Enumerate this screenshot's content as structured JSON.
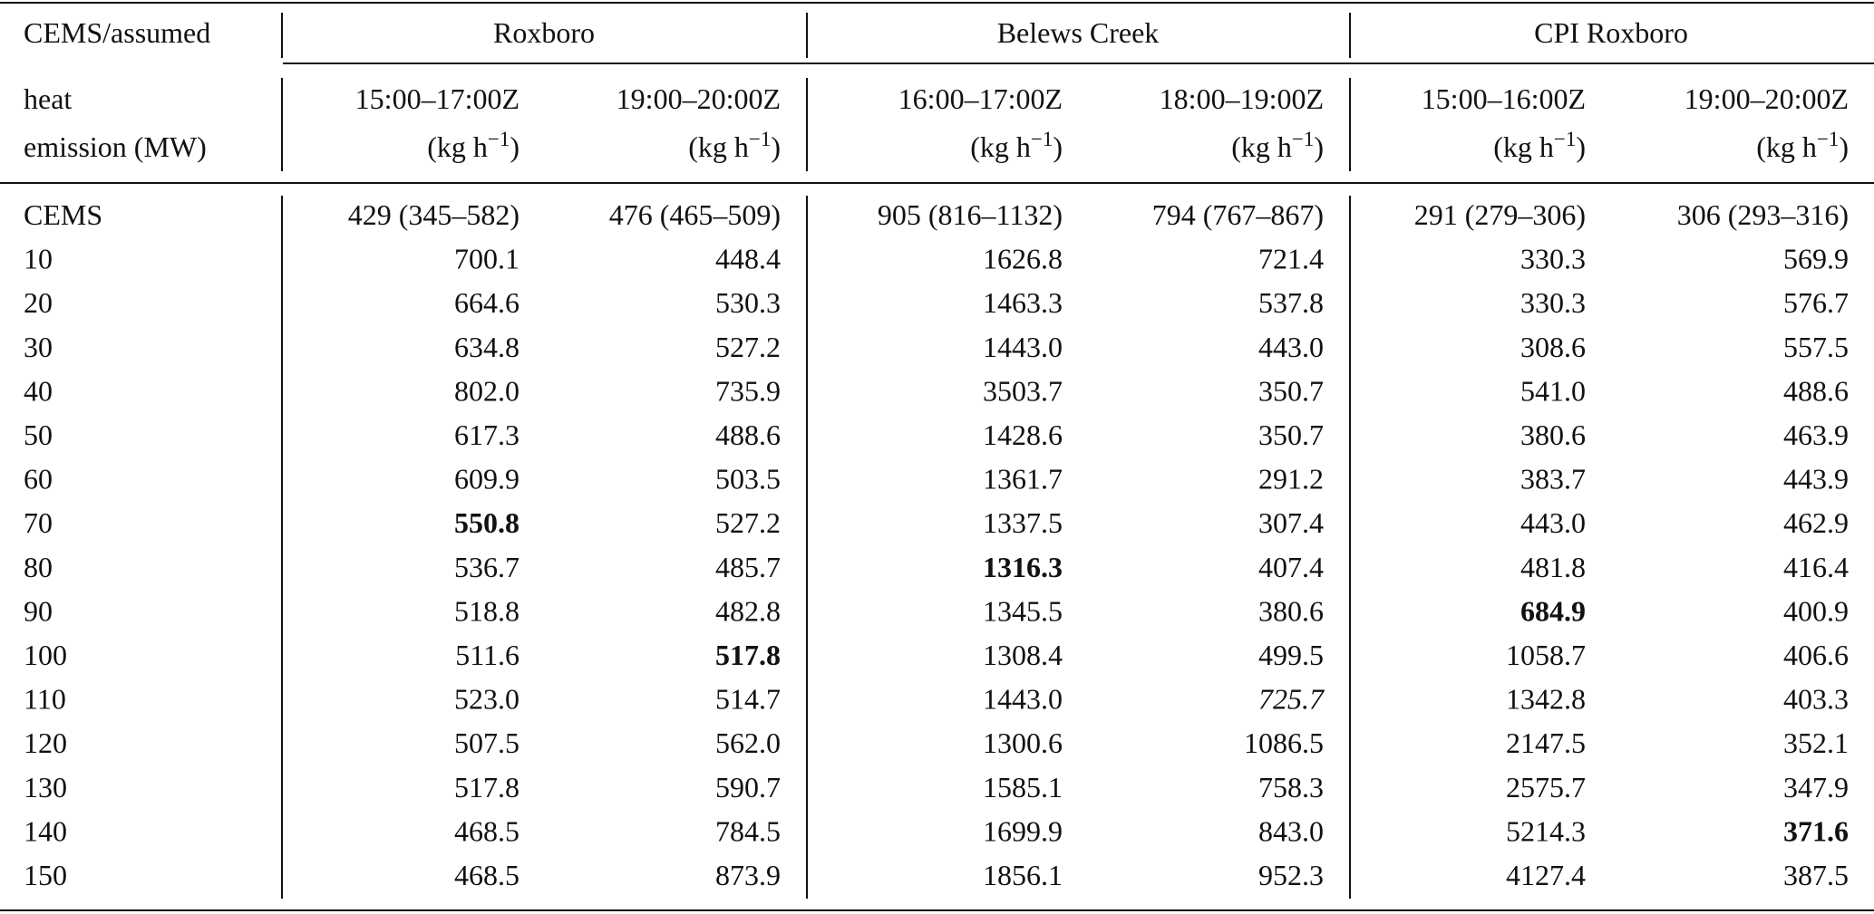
{
  "table": {
    "corner": [
      "CEMS/assumed",
      "heat",
      "emission (MW)"
    ],
    "groups": [
      "Roxboro",
      "Belews Creek",
      "CPI Roxboro"
    ],
    "columns": [
      "15:00–17:00Z",
      "19:00–20:00Z",
      "16:00–17:00Z",
      "18:00–19:00Z",
      "15:00–16:00Z",
      "19:00–20:00Z"
    ],
    "unit": {
      "open": "(kg h",
      "sup": "−1",
      "close": ")"
    },
    "rows": [
      [
        "CEMS",
        "429 (345–582)",
        "476 (465–509)",
        "905 (816–1132)",
        "794 (767–867)",
        "291 (279–306)",
        "306 (293–316)"
      ],
      [
        "10",
        "700.1",
        "448.4",
        "1626.8",
        "721.4",
        "330.3",
        "569.9"
      ],
      [
        "20",
        "664.6",
        "530.3",
        "1463.3",
        "537.8",
        "330.3",
        "576.7"
      ],
      [
        "30",
        "634.8",
        "527.2",
        "1443.0",
        "443.0",
        "308.6",
        "557.5"
      ],
      [
        "40",
        "802.0",
        "735.9",
        "3503.7",
        "350.7",
        "541.0",
        "488.6"
      ],
      [
        "50",
        "617.3",
        "488.6",
        "1428.6",
        "350.7",
        "380.6",
        "463.9"
      ],
      [
        "60",
        "609.9",
        "503.5",
        "1361.7",
        "291.2",
        "383.7",
        "443.9"
      ],
      [
        "70",
        "550.8",
        "527.2",
        "1337.5",
        "307.4",
        "443.0",
        "462.9"
      ],
      [
        "80",
        "536.7",
        "485.7",
        "1316.3",
        "407.4",
        "481.8",
        "416.4"
      ],
      [
        "90",
        "518.8",
        "482.8",
        "1345.5",
        "380.6",
        "684.9",
        "400.9"
      ],
      [
        "100",
        "511.6",
        "517.8",
        "1308.4",
        "499.5",
        "1058.7",
        "406.6"
      ],
      [
        "110",
        "523.0",
        "514.7",
        "1443.0",
        "725.7",
        "1342.8",
        "403.3"
      ],
      [
        "120",
        "507.5",
        "562.0",
        "1300.6",
        "1086.5",
        "2147.5",
        "352.1"
      ],
      [
        "130",
        "517.8",
        "590.7",
        "1585.1",
        "758.3",
        "2575.7",
        "347.9"
      ],
      [
        "140",
        "468.5",
        "784.5",
        "1699.9",
        "843.0",
        "5214.3",
        "371.6"
      ],
      [
        "150",
        "468.5",
        "873.9",
        "1856.1",
        "952.3",
        "4127.4",
        "387.5"
      ]
    ],
    "bold_cells": [
      [
        7,
        1
      ],
      [
        8,
        3
      ],
      [
        9,
        5
      ],
      [
        10,
        2
      ],
      [
        14,
        6
      ]
    ],
    "italic_cells": [
      [
        11,
        4
      ]
    ]
  }
}
